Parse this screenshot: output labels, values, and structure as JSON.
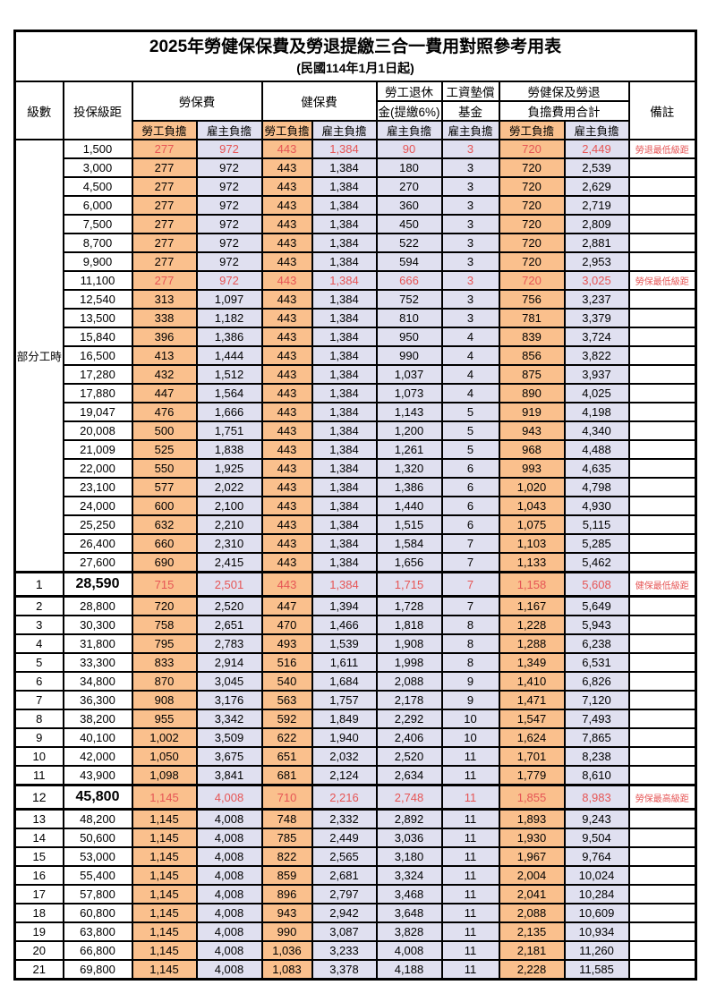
{
  "header": {
    "title": "2025年勞健保保費及勞退提繳三合一費用對照參考用表",
    "subtitle": "(民國114年1月1日起)"
  },
  "columns": {
    "level": "級數",
    "salary": "投保級距",
    "labor": "勞保費",
    "health": "健保費",
    "pension_line1": "勞工退休",
    "pension_line2": "金(提繳6%)",
    "wage_fund_line1": "工資墊償",
    "wage_fund_line2": "基金",
    "total_line1": "勞健保及勞退",
    "total_line2": "負擔費用合計",
    "note": "備註",
    "employee": "勞工負擔",
    "employer": "雇主負擔"
  },
  "part_time_label": "部分工時",
  "colors": {
    "employee_bg": "#fac08d",
    "employer_bg": "#e0e0f0",
    "highlight_text": "#e65555"
  },
  "rows": [
    {
      "section": "parttime",
      "level": "",
      "salary": "1,500",
      "values": [
        "277",
        "972",
        "443",
        "1,384",
        "90",
        "3",
        "720",
        "2,449"
      ],
      "note": "勞退最低級距",
      "highlight": true,
      "emphasis": false
    },
    {
      "section": "parttime",
      "level": "",
      "salary": "3,000",
      "values": [
        "277",
        "972",
        "443",
        "1,384",
        "180",
        "3",
        "720",
        "2,539"
      ],
      "note": "",
      "highlight": false,
      "emphasis": false
    },
    {
      "section": "parttime",
      "level": "",
      "salary": "4,500",
      "values": [
        "277",
        "972",
        "443",
        "1,384",
        "270",
        "3",
        "720",
        "2,629"
      ],
      "note": "",
      "highlight": false,
      "emphasis": false
    },
    {
      "section": "parttime",
      "level": "",
      "salary": "6,000",
      "values": [
        "277",
        "972",
        "443",
        "1,384",
        "360",
        "3",
        "720",
        "2,719"
      ],
      "note": "",
      "highlight": false,
      "emphasis": false
    },
    {
      "section": "parttime",
      "level": "",
      "salary": "7,500",
      "values": [
        "277",
        "972",
        "443",
        "1,384",
        "450",
        "3",
        "720",
        "2,809"
      ],
      "note": "",
      "highlight": false,
      "emphasis": false
    },
    {
      "section": "parttime",
      "level": "",
      "salary": "8,700",
      "values": [
        "277",
        "972",
        "443",
        "1,384",
        "522",
        "3",
        "720",
        "2,881"
      ],
      "note": "",
      "highlight": false,
      "emphasis": false
    },
    {
      "section": "parttime",
      "level": "",
      "salary": "9,900",
      "values": [
        "277",
        "972",
        "443",
        "1,384",
        "594",
        "3",
        "720",
        "2,953"
      ],
      "note": "",
      "highlight": false,
      "emphasis": false
    },
    {
      "section": "parttime",
      "level": "",
      "salary": "11,100",
      "values": [
        "277",
        "972",
        "443",
        "1,384",
        "666",
        "3",
        "720",
        "3,025"
      ],
      "note": "勞保最低級距",
      "highlight": true,
      "emphasis": false
    },
    {
      "section": "parttime",
      "level": "",
      "salary": "12,540",
      "values": [
        "313",
        "1,097",
        "443",
        "1,384",
        "752",
        "3",
        "756",
        "3,237"
      ],
      "note": "",
      "highlight": false,
      "emphasis": false
    },
    {
      "section": "parttime",
      "level": "",
      "salary": "13,500",
      "values": [
        "338",
        "1,182",
        "443",
        "1,384",
        "810",
        "3",
        "781",
        "3,379"
      ],
      "note": "",
      "highlight": false,
      "emphasis": false
    },
    {
      "section": "parttime",
      "level": "",
      "salary": "15,840",
      "values": [
        "396",
        "1,386",
        "443",
        "1,384",
        "950",
        "4",
        "839",
        "3,724"
      ],
      "note": "",
      "highlight": false,
      "emphasis": false
    },
    {
      "section": "parttime",
      "level": "",
      "salary": "16,500",
      "values": [
        "413",
        "1,444",
        "443",
        "1,384",
        "990",
        "4",
        "856",
        "3,822"
      ],
      "note": "",
      "highlight": false,
      "emphasis": false
    },
    {
      "section": "parttime",
      "level": "",
      "salary": "17,280",
      "values": [
        "432",
        "1,512",
        "443",
        "1,384",
        "1,037",
        "4",
        "875",
        "3,937"
      ],
      "note": "",
      "highlight": false,
      "emphasis": false
    },
    {
      "section": "parttime",
      "level": "",
      "salary": "17,880",
      "values": [
        "447",
        "1,564",
        "443",
        "1,384",
        "1,073",
        "4",
        "890",
        "4,025"
      ],
      "note": "",
      "highlight": false,
      "emphasis": false
    },
    {
      "section": "parttime",
      "level": "",
      "salary": "19,047",
      "values": [
        "476",
        "1,666",
        "443",
        "1,384",
        "1,143",
        "5",
        "919",
        "4,198"
      ],
      "note": "",
      "highlight": false,
      "emphasis": false
    },
    {
      "section": "parttime",
      "level": "",
      "salary": "20,008",
      "values": [
        "500",
        "1,751",
        "443",
        "1,384",
        "1,200",
        "5",
        "943",
        "4,340"
      ],
      "note": "",
      "highlight": false,
      "emphasis": false
    },
    {
      "section": "parttime",
      "level": "",
      "salary": "21,009",
      "values": [
        "525",
        "1,838",
        "443",
        "1,384",
        "1,261",
        "5",
        "968",
        "4,488"
      ],
      "note": "",
      "highlight": false,
      "emphasis": false
    },
    {
      "section": "parttime",
      "level": "",
      "salary": "22,000",
      "values": [
        "550",
        "1,925",
        "443",
        "1,384",
        "1,320",
        "6",
        "993",
        "4,635"
      ],
      "note": "",
      "highlight": false,
      "emphasis": false
    },
    {
      "section": "parttime",
      "level": "",
      "salary": "23,100",
      "values": [
        "577",
        "2,022",
        "443",
        "1,384",
        "1,386",
        "6",
        "1,020",
        "4,798"
      ],
      "note": "",
      "highlight": false,
      "emphasis": false
    },
    {
      "section": "parttime",
      "level": "",
      "salary": "24,000",
      "values": [
        "600",
        "2,100",
        "443",
        "1,384",
        "1,440",
        "6",
        "1,043",
        "4,930"
      ],
      "note": "",
      "highlight": false,
      "emphasis": false
    },
    {
      "section": "parttime",
      "level": "",
      "salary": "25,250",
      "values": [
        "632",
        "2,210",
        "443",
        "1,384",
        "1,515",
        "6",
        "1,075",
        "5,115"
      ],
      "note": "",
      "highlight": false,
      "emphasis": false
    },
    {
      "section": "parttime",
      "level": "",
      "salary": "26,400",
      "values": [
        "660",
        "2,310",
        "443",
        "1,384",
        "1,584",
        "7",
        "1,103",
        "5,285"
      ],
      "note": "",
      "highlight": false,
      "emphasis": false
    },
    {
      "section": "parttime",
      "level": "",
      "salary": "27,600",
      "values": [
        "690",
        "2,415",
        "443",
        "1,384",
        "1,656",
        "7",
        "1,133",
        "5,462"
      ],
      "note": "",
      "highlight": false,
      "emphasis": false
    },
    {
      "section": "level",
      "level": "1",
      "salary": "28,590",
      "values": [
        "715",
        "2,501",
        "443",
        "1,384",
        "1,715",
        "7",
        "1,158",
        "5,608"
      ],
      "note": "健保最低級距",
      "highlight": true,
      "emphasis": true
    },
    {
      "section": "level",
      "level": "2",
      "salary": "28,800",
      "values": [
        "720",
        "2,520",
        "447",
        "1,394",
        "1,728",
        "7",
        "1,167",
        "5,649"
      ],
      "note": "",
      "highlight": false,
      "emphasis": false
    },
    {
      "section": "level",
      "level": "3",
      "salary": "30,300",
      "values": [
        "758",
        "2,651",
        "470",
        "1,466",
        "1,818",
        "8",
        "1,228",
        "5,943"
      ],
      "note": "",
      "highlight": false,
      "emphasis": false
    },
    {
      "section": "level",
      "level": "4",
      "salary": "31,800",
      "values": [
        "795",
        "2,783",
        "493",
        "1,539",
        "1,908",
        "8",
        "1,288",
        "6,238"
      ],
      "note": "",
      "highlight": false,
      "emphasis": false
    },
    {
      "section": "level",
      "level": "5",
      "salary": "33,300",
      "values": [
        "833",
        "2,914",
        "516",
        "1,611",
        "1,998",
        "8",
        "1,349",
        "6,531"
      ],
      "note": "",
      "highlight": false,
      "emphasis": false
    },
    {
      "section": "level",
      "level": "6",
      "salary": "34,800",
      "values": [
        "870",
        "3,045",
        "540",
        "1,684",
        "2,088",
        "9",
        "1,410",
        "6,826"
      ],
      "note": "",
      "highlight": false,
      "emphasis": false
    },
    {
      "section": "level",
      "level": "7",
      "salary": "36,300",
      "values": [
        "908",
        "3,176",
        "563",
        "1,757",
        "2,178",
        "9",
        "1,471",
        "7,120"
      ],
      "note": "",
      "highlight": false,
      "emphasis": false
    },
    {
      "section": "level",
      "level": "8",
      "salary": "38,200",
      "values": [
        "955",
        "3,342",
        "592",
        "1,849",
        "2,292",
        "10",
        "1,547",
        "7,493"
      ],
      "note": "",
      "highlight": false,
      "emphasis": false
    },
    {
      "section": "level",
      "level": "9",
      "salary": "40,100",
      "values": [
        "1,002",
        "3,509",
        "622",
        "1,940",
        "2,406",
        "10",
        "1,624",
        "7,865"
      ],
      "note": "",
      "highlight": false,
      "emphasis": false
    },
    {
      "section": "level",
      "level": "10",
      "salary": "42,000",
      "values": [
        "1,050",
        "3,675",
        "651",
        "2,032",
        "2,520",
        "11",
        "1,701",
        "8,238"
      ],
      "note": "",
      "highlight": false,
      "emphasis": false
    },
    {
      "section": "level",
      "level": "11",
      "salary": "43,900",
      "values": [
        "1,098",
        "3,841",
        "681",
        "2,124",
        "2,634",
        "11",
        "1,779",
        "8,610"
      ],
      "note": "",
      "highlight": false,
      "emphasis": false
    },
    {
      "section": "level",
      "level": "12",
      "salary": "45,800",
      "values": [
        "1,145",
        "4,008",
        "710",
        "2,216",
        "2,748",
        "11",
        "1,855",
        "8,983"
      ],
      "note": "勞保最高級距",
      "highlight": true,
      "emphasis": true
    },
    {
      "section": "level",
      "level": "13",
      "salary": "48,200",
      "values": [
        "1,145",
        "4,008",
        "748",
        "2,332",
        "2,892",
        "11",
        "1,893",
        "9,243"
      ],
      "note": "",
      "highlight": false,
      "emphasis": false
    },
    {
      "section": "level",
      "level": "14",
      "salary": "50,600",
      "values": [
        "1,145",
        "4,008",
        "785",
        "2,449",
        "3,036",
        "11",
        "1,930",
        "9,504"
      ],
      "note": "",
      "highlight": false,
      "emphasis": false
    },
    {
      "section": "level",
      "level": "15",
      "salary": "53,000",
      "values": [
        "1,145",
        "4,008",
        "822",
        "2,565",
        "3,180",
        "11",
        "1,967",
        "9,764"
      ],
      "note": "",
      "highlight": false,
      "emphasis": false
    },
    {
      "section": "level",
      "level": "16",
      "salary": "55,400",
      "values": [
        "1,145",
        "4,008",
        "859",
        "2,681",
        "3,324",
        "11",
        "2,004",
        "10,024"
      ],
      "note": "",
      "highlight": false,
      "emphasis": false
    },
    {
      "section": "level",
      "level": "17",
      "salary": "57,800",
      "values": [
        "1,145",
        "4,008",
        "896",
        "2,797",
        "3,468",
        "11",
        "2,041",
        "10,284"
      ],
      "note": "",
      "highlight": false,
      "emphasis": false
    },
    {
      "section": "level",
      "level": "18",
      "salary": "60,800",
      "values": [
        "1,145",
        "4,008",
        "943",
        "2,942",
        "3,648",
        "11",
        "2,088",
        "10,609"
      ],
      "note": "",
      "highlight": false,
      "emphasis": false
    },
    {
      "section": "level",
      "level": "19",
      "salary": "63,800",
      "values": [
        "1,145",
        "4,008",
        "990",
        "3,087",
        "3,828",
        "11",
        "2,135",
        "10,934"
      ],
      "note": "",
      "highlight": false,
      "emphasis": false
    },
    {
      "section": "level",
      "level": "20",
      "salary": "66,800",
      "values": [
        "1,145",
        "4,008",
        "1,036",
        "3,233",
        "4,008",
        "11",
        "2,181",
        "11,260"
      ],
      "note": "",
      "highlight": false,
      "emphasis": false
    },
    {
      "section": "level",
      "level": "21",
      "salary": "69,800",
      "values": [
        "1,145",
        "4,008",
        "1,083",
        "3,378",
        "4,188",
        "11",
        "2,228",
        "11,585"
      ],
      "note": "",
      "highlight": false,
      "emphasis": false
    }
  ]
}
